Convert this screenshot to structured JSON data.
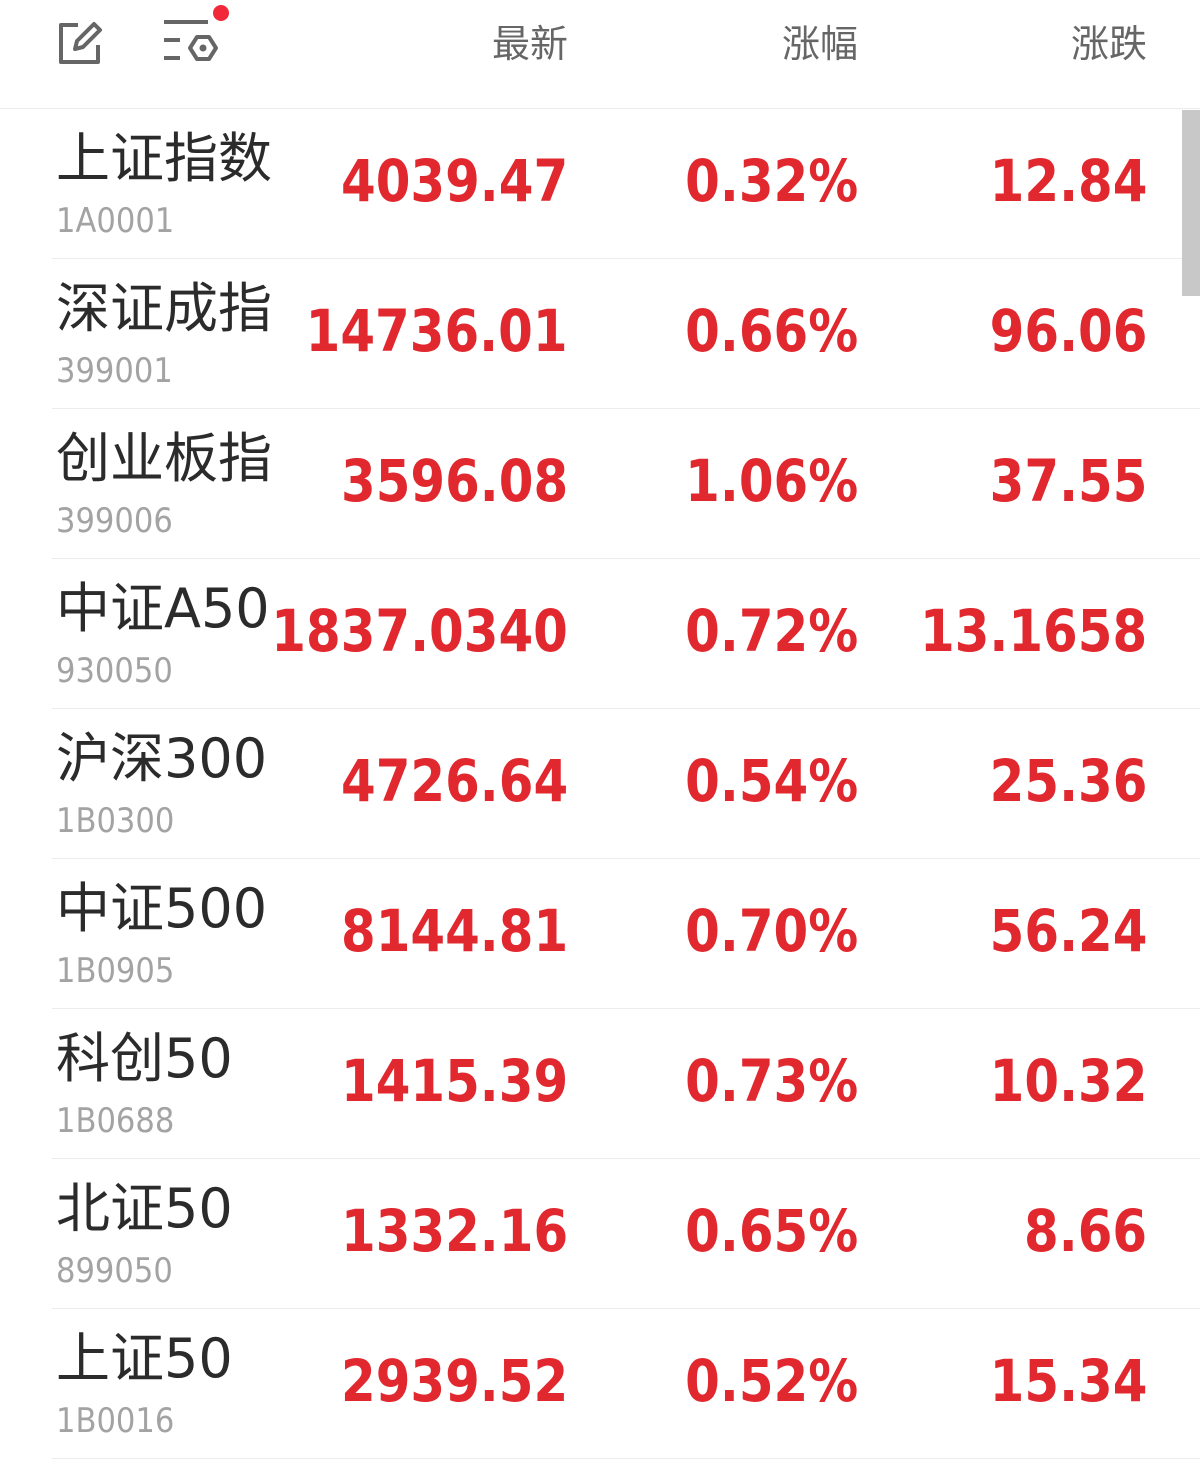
{
  "header": {
    "icons": [
      "edit-icon",
      "filter-settings-icon"
    ],
    "notification_dot_color": "#f0283a",
    "columns": [
      "最新",
      "涨幅",
      "涨跌"
    ]
  },
  "colors": {
    "up": "#e0282e",
    "name": "#2b2b2b",
    "code": "#a3a3a3"
  },
  "rows": [
    {
      "name": "上证指数",
      "code": "1A0001",
      "latest": "4039.47",
      "change_pct": "0.32%",
      "change": "12.84"
    },
    {
      "name": "深证成指",
      "code": "399001",
      "latest": "14736.01",
      "change_pct": "0.66%",
      "change": "96.06"
    },
    {
      "name": "创业板指",
      "code": "399006",
      "latest": "3596.08",
      "change_pct": "1.06%",
      "change": "37.55"
    },
    {
      "name": "中证A50",
      "code": "930050",
      "latest": "1837.0340",
      "change_pct": "0.72%",
      "change": "13.1658"
    },
    {
      "name": "沪深300",
      "code": "1B0300",
      "latest": "4726.64",
      "change_pct": "0.54%",
      "change": "25.36"
    },
    {
      "name": "中证500",
      "code": "1B0905",
      "latest": "8144.81",
      "change_pct": "0.70%",
      "change": "56.24"
    },
    {
      "name": "科创50",
      "code": "1B0688",
      "latest": "1415.39",
      "change_pct": "0.73%",
      "change": "10.32"
    },
    {
      "name": "北证50",
      "code": "899050",
      "latest": "1332.16",
      "change_pct": "0.65%",
      "change": "8.66"
    },
    {
      "name": "上证50",
      "code": "1B0016",
      "latest": "2939.52",
      "change_pct": "0.52%",
      "change": "15.34"
    }
  ]
}
